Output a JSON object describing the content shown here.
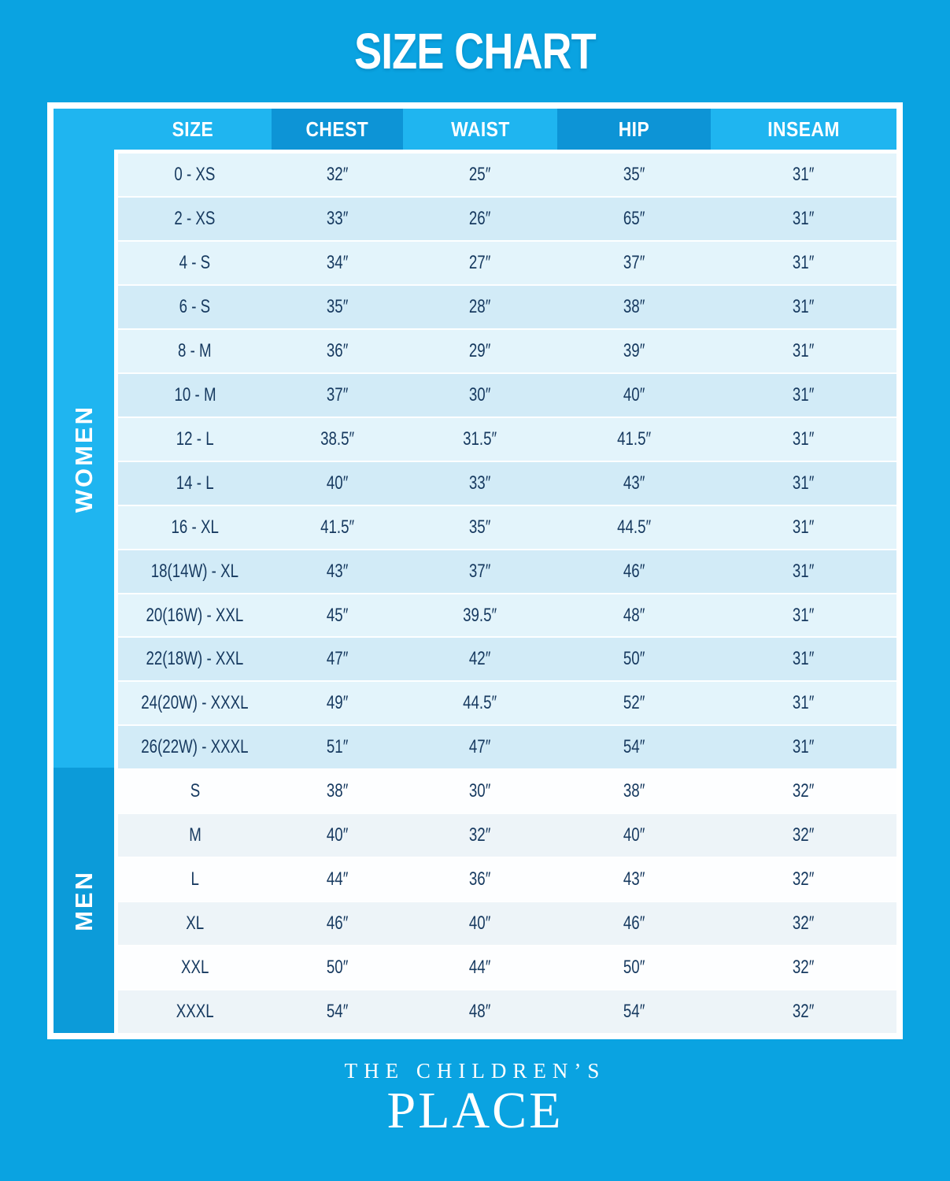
{
  "title": "SIZE CHART",
  "colors": {
    "page_bg": "#0aa3e1",
    "band": "#1fb5f0",
    "band_dark": "#0d94d6",
    "men_band": "#0c9bd9",
    "row_women_a": "#e3f4fb",
    "row_women_b": "#d2ebf7",
    "row_men_a": "#fdfeff",
    "row_men_b": "#edf4f8",
    "cell_text": "#16395f"
  },
  "chart_data": {
    "type": "table",
    "title": "SIZE CHART",
    "columns": [
      "SIZE",
      "CHEST",
      "WAIST",
      "HIP",
      "INSEAM"
    ],
    "sections": [
      {
        "label": "WOMEN",
        "rows": [
          [
            "0 - XS",
            "32″",
            "25″",
            "35″",
            "31″"
          ],
          [
            "2 - XS",
            "33″",
            "26″",
            "65″",
            "31″"
          ],
          [
            "4 - S",
            "34″",
            "27″",
            "37″",
            "31″"
          ],
          [
            "6 - S",
            "35″",
            "28″",
            "38″",
            "31″"
          ],
          [
            "8 - M",
            "36″",
            "29″",
            "39″",
            "31″"
          ],
          [
            "10 - M",
            "37″",
            "30″",
            "40″",
            "31″"
          ],
          [
            "12 - L",
            "38.5″",
            "31.5″",
            "41.5″",
            "31″"
          ],
          [
            "14 - L",
            "40″",
            "33″",
            "43″",
            "31″"
          ],
          [
            "16 - XL",
            "41.5″",
            "35″",
            "44.5″",
            "31″"
          ],
          [
            "18(14W) - XL",
            "43″",
            "37″",
            "46″",
            "31″"
          ],
          [
            "20(16W) - XXL",
            "45″",
            "39.5″",
            "48″",
            "31″"
          ],
          [
            "22(18W) - XXL",
            "47″",
            "42″",
            "50″",
            "31″"
          ],
          [
            "24(20W) - XXXL",
            "49″",
            "44.5″",
            "52″",
            "31″"
          ],
          [
            "26(22W) - XXXL",
            "51″",
            "47″",
            "54″",
            "31″"
          ]
        ]
      },
      {
        "label": "MEN",
        "rows": [
          [
            "S",
            "38″",
            "30″",
            "38″",
            "32″"
          ],
          [
            "M",
            "40″",
            "32″",
            "40″",
            "32″"
          ],
          [
            "L",
            "44″",
            "36″",
            "43″",
            "32″"
          ],
          [
            "XL",
            "46″",
            "40″",
            "46″",
            "32″"
          ],
          [
            "XXL",
            "50″",
            "44″",
            "50″",
            "32″"
          ],
          [
            "XXXL",
            "54″",
            "48″",
            "54″",
            "32″"
          ]
        ]
      }
    ]
  },
  "brand": {
    "line1": "THE CHILDREN’S",
    "line2": "PLACE"
  }
}
